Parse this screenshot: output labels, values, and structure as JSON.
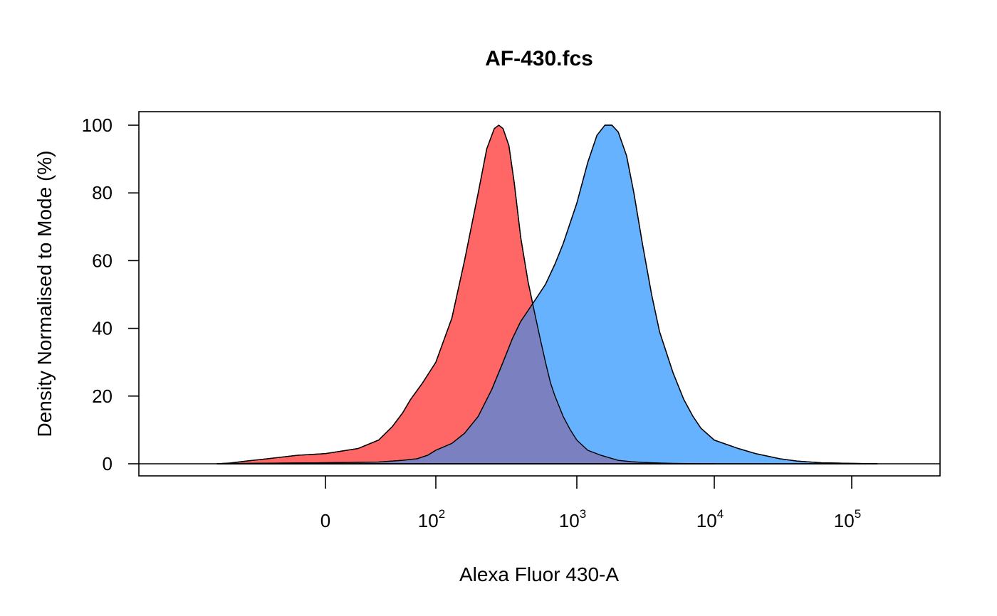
{
  "chart_data": {
    "type": "area",
    "title": "AF-430.fcs",
    "xlabel": "Alexa Fluor 430-A",
    "ylabel": "Density Normalised to Mode (%)",
    "x_scale": "logicle",
    "ylim": [
      0,
      100
    ],
    "grid": false,
    "legend": "none",
    "x_ticks": [
      {
        "value": 0,
        "base": "0",
        "exp": ""
      },
      {
        "value": 100,
        "base": "10",
        "exp": "2"
      },
      {
        "value": 1000,
        "base": "10",
        "exp": "3"
      },
      {
        "value": 10000,
        "base": "10",
        "exp": "4"
      },
      {
        "value": 100000,
        "base": "10",
        "exp": "5"
      }
    ],
    "y_ticks": [
      "0",
      "20",
      "40",
      "60",
      "80",
      "100"
    ],
    "series": [
      {
        "color": "#ff6666",
        "x": [
          -150,
          -100,
          -60,
          -30,
          -10,
          0,
          10,
          20,
          30,
          40,
          50,
          70,
          100,
          130,
          160,
          200,
          230,
          260,
          280,
          300,
          330,
          360,
          400,
          450,
          500,
          550,
          600,
          650,
          700,
          800,
          900,
          1000,
          1200,
          1500,
          2000,
          2500,
          3000,
          4000,
          5000,
          8000,
          10000
        ],
        "y": [
          0,
          0.2,
          0.8,
          1.5,
          2.5,
          3,
          4.5,
          7,
          11,
          15,
          19,
          24,
          30,
          43,
          60,
          80,
          93,
          99,
          100,
          99,
          94,
          83,
          67,
          54,
          45,
          37,
          30,
          24,
          20,
          14,
          10,
          7,
          4,
          2.5,
          1,
          0.6,
          0.4,
          0.2,
          0.1,
          0,
          0
        ]
      },
      {
        "color": "#66b2ff",
        "x": [
          -150,
          -50,
          0,
          20,
          40,
          60,
          80,
          100,
          130,
          160,
          200,
          250,
          300,
          350,
          400,
          500,
          600,
          700,
          800,
          1000,
          1200,
          1400,
          1600,
          1800,
          2000,
          2300,
          2600,
          3000,
          3500,
          4000,
          5000,
          6000,
          7000,
          8000,
          10000,
          15000,
          20000,
          30000,
          40000,
          60000,
          100000,
          150000
        ],
        "y": [
          0,
          0.1,
          0.3,
          0.5,
          1,
          1.5,
          2.5,
          4,
          6,
          9,
          14,
          22,
          30,
          37,
          42,
          48,
          53,
          59,
          65,
          77,
          89,
          97,
          100,
          100,
          98,
          91,
          80,
          65,
          50,
          39,
          27,
          19,
          14,
          10.5,
          7,
          4.5,
          3,
          1.5,
          0.8,
          0.3,
          0.1,
          0
        ]
      }
    ],
    "overlap_color": "#7a80c0"
  }
}
